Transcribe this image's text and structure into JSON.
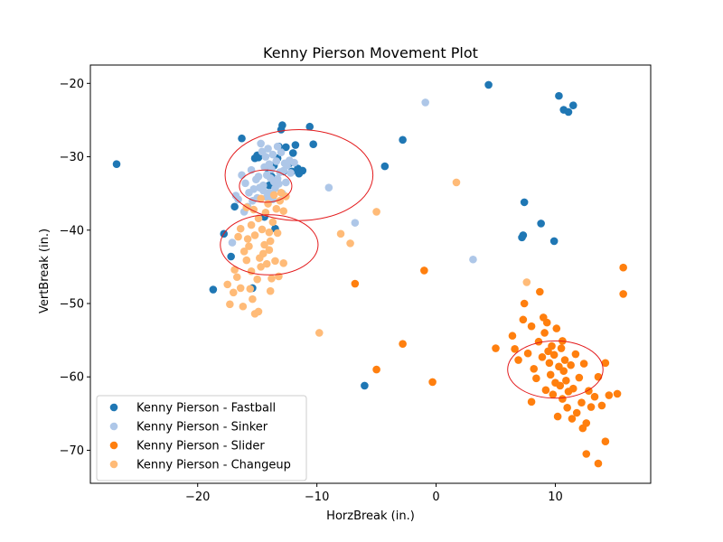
{
  "chart_data": {
    "type": "scatter",
    "title": "Kenny Pierson Movement Plot",
    "xlabel": "HorzBreak (in.)",
    "ylabel": "VertBreak (in.)",
    "xlim": [
      -29,
      18
    ],
    "ylim": [
      -74.5,
      -17.5
    ],
    "xticks": [
      -20,
      -10,
      0,
      10
    ],
    "yticks": [
      -20,
      -30,
      -40,
      -50,
      -60,
      -70
    ],
    "grid": false,
    "legend_position": "lower-left",
    "ellipse_color": "#e31a1c",
    "ellipses": [
      {
        "cx": -11.5,
        "cy": -32.5,
        "rx": 6.2,
        "ry": 6.2
      },
      {
        "cx": -14.3,
        "cy": -34.0,
        "rx": 2.2,
        "ry": 2.2
      },
      {
        "cx": -14.0,
        "cy": -42.0,
        "rx": 4.1,
        "ry": 4.1
      },
      {
        "cx": 10.0,
        "cy": -59.0,
        "rx": 4.0,
        "ry": 3.9
      }
    ],
    "series": [
      {
        "name": "Kenny Pierson - Fastball",
        "color": "#1f77b4",
        "points": [
          [
            -26.8,
            -31.0
          ],
          [
            -17.8,
            -40.5
          ],
          [
            -18.7,
            -48.1
          ],
          [
            -17.2,
            -43.6
          ],
          [
            -16.9,
            -36.8
          ],
          [
            -16.3,
            -27.5
          ],
          [
            -15.2,
            -30.2
          ],
          [
            -14.9,
            -30.1
          ],
          [
            -14.6,
            -29.5
          ],
          [
            -14.2,
            -31.5
          ],
          [
            -13.6,
            -31.2
          ],
          [
            -13.2,
            -28.6
          ],
          [
            -13.0,
            -26.3
          ],
          [
            -12.9,
            -25.7
          ],
          [
            -12.6,
            -28.7
          ],
          [
            -12.3,
            -30.9
          ],
          [
            -12.0,
            -29.5
          ],
          [
            -11.8,
            -28.4
          ],
          [
            -11.6,
            -31.6
          ],
          [
            -11.5,
            -32.3
          ],
          [
            -11.2,
            -31.9
          ],
          [
            -10.6,
            -25.9
          ],
          [
            -10.3,
            -28.3
          ],
          [
            -13.8,
            -32.7
          ],
          [
            -14.0,
            -33.9
          ],
          [
            -12.8,
            -32.0
          ],
          [
            -13.5,
            -39.8
          ],
          [
            -14.4,
            -38.2
          ],
          [
            -15.0,
            -29.8
          ],
          [
            -13.3,
            -30.2
          ],
          [
            -4.3,
            -31.3
          ],
          [
            -2.8,
            -27.7
          ],
          [
            4.4,
            -20.2
          ],
          [
            10.3,
            -21.7
          ],
          [
            10.7,
            -23.6
          ],
          [
            11.1,
            -23.9
          ],
          [
            11.5,
            -23.0
          ],
          [
            7.4,
            -36.2
          ],
          [
            8.8,
            -39.1
          ],
          [
            7.3,
            -40.7
          ],
          [
            7.2,
            -41.0
          ],
          [
            9.9,
            -41.5
          ],
          [
            -6.0,
            -61.2
          ],
          [
            -15.4,
            -47.9
          ],
          [
            -12.1,
            -32.0
          ]
        ]
      },
      {
        "name": "Kenny Pierson - Sinker",
        "color": "#aec7e8",
        "points": [
          [
            -16.3,
            -32.5
          ],
          [
            -16.0,
            -33.6
          ],
          [
            -15.7,
            -34.9
          ],
          [
            -16.8,
            -35.3
          ],
          [
            -15.8,
            -36.8
          ],
          [
            -15.4,
            -36.0
          ],
          [
            -15.0,
            -35.6
          ],
          [
            -14.8,
            -34.2
          ],
          [
            -14.5,
            -33.9
          ],
          [
            -14.2,
            -32.5
          ],
          [
            -13.9,
            -32.9
          ],
          [
            -13.6,
            -33.4
          ],
          [
            -13.3,
            -33.0
          ],
          [
            -13.1,
            -32.1
          ],
          [
            -12.8,
            -31.9
          ],
          [
            -12.5,
            -31.2
          ],
          [
            -12.3,
            -30.5
          ],
          [
            -14.0,
            -31.0
          ],
          [
            -14.3,
            -30.0
          ],
          [
            -14.6,
            -29.3
          ],
          [
            -14.7,
            -28.2
          ],
          [
            -14.1,
            -28.9
          ],
          [
            -13.7,
            -29.7
          ],
          [
            -13.4,
            -30.6
          ],
          [
            -13.0,
            -29.4
          ],
          [
            -12.7,
            -30.9
          ],
          [
            -12.2,
            -32.2
          ],
          [
            -11.9,
            -30.8
          ],
          [
            -15.1,
            -33.1
          ],
          [
            -14.9,
            -32.7
          ],
          [
            -14.5,
            -34.6
          ],
          [
            -14.0,
            -34.9
          ],
          [
            -13.5,
            -34.3
          ],
          [
            -13.2,
            -33.7
          ],
          [
            -12.9,
            -35.0
          ],
          [
            -15.5,
            -31.8
          ],
          [
            -14.4,
            -31.4
          ],
          [
            -13.8,
            -31.7
          ],
          [
            -13.3,
            -28.6
          ],
          [
            -15.3,
            -34.4
          ],
          [
            -14.2,
            -35.5
          ],
          [
            -13.7,
            -35.8
          ],
          [
            -16.1,
            -37.5
          ],
          [
            -17.1,
            -41.7
          ],
          [
            -9.0,
            -34.2
          ],
          [
            -6.8,
            -39.0
          ],
          [
            -0.9,
            -22.6
          ],
          [
            3.1,
            -44.0
          ],
          [
            -16.6,
            -35.8
          ],
          [
            -12.6,
            -33.5
          ]
        ]
      },
      {
        "name": "Kenny Pierson - Slider",
        "color": "#ff7f0e",
        "points": [
          [
            -6.8,
            -47.3
          ],
          [
            -1.0,
            -45.5
          ],
          [
            -2.8,
            -55.5
          ],
          [
            -5.0,
            -59.0
          ],
          [
            -0.3,
            -60.7
          ],
          [
            5.0,
            -56.1
          ],
          [
            6.4,
            -54.4
          ],
          [
            6.6,
            -56.2
          ],
          [
            6.9,
            -57.7
          ],
          [
            7.3,
            -52.2
          ],
          [
            7.4,
            -50.0
          ],
          [
            7.7,
            -56.8
          ],
          [
            8.0,
            -53.1
          ],
          [
            8.2,
            -58.9
          ],
          [
            8.4,
            -60.2
          ],
          [
            8.6,
            -55.2
          ],
          [
            8.7,
            -48.4
          ],
          [
            8.9,
            -57.3
          ],
          [
            9.1,
            -54.0
          ],
          [
            9.2,
            -61.8
          ],
          [
            9.3,
            -52.6
          ],
          [
            9.4,
            -56.5
          ],
          [
            9.5,
            -58.1
          ],
          [
            9.6,
            -59.7
          ],
          [
            9.7,
            -55.8
          ],
          [
            9.8,
            -62.4
          ],
          [
            9.9,
            -57.0
          ],
          [
            10.0,
            -60.8
          ],
          [
            10.1,
            -53.4
          ],
          [
            10.2,
            -65.4
          ],
          [
            10.3,
            -58.6
          ],
          [
            10.4,
            -61.2
          ],
          [
            10.5,
            -56.1
          ],
          [
            10.6,
            -63.0
          ],
          [
            10.7,
            -59.2
          ],
          [
            10.8,
            -57.7
          ],
          [
            10.9,
            -60.5
          ],
          [
            11.0,
            -64.2
          ],
          [
            11.1,
            -62.0
          ],
          [
            11.3,
            -58.4
          ],
          [
            11.5,
            -61.6
          ],
          [
            11.7,
            -56.9
          ],
          [
            11.8,
            -64.9
          ],
          [
            12.0,
            -60.1
          ],
          [
            12.2,
            -63.5
          ],
          [
            12.4,
            -58.2
          ],
          [
            12.6,
            -66.3
          ],
          [
            12.8,
            -61.9
          ],
          [
            13.0,
            -64.1
          ],
          [
            13.3,
            -62.7
          ],
          [
            13.6,
            -60.0
          ],
          [
            13.9,
            -63.9
          ],
          [
            14.2,
            -58.1
          ],
          [
            14.5,
            -62.5
          ],
          [
            15.2,
            -62.3
          ],
          [
            14.2,
            -68.8
          ],
          [
            12.6,
            -70.5
          ],
          [
            13.6,
            -71.8
          ],
          [
            15.7,
            -45.1
          ],
          [
            15.7,
            -48.7
          ],
          [
            8.0,
            -63.4
          ],
          [
            9.0,
            -51.9
          ],
          [
            10.6,
            -55.1
          ],
          [
            11.4,
            -65.7
          ],
          [
            12.3,
            -67.0
          ]
        ]
      },
      {
        "name": "Kenny Pierson - Changeup",
        "color": "#ffbb78",
        "points": [
          [
            -17.3,
            -50.1
          ],
          [
            -17.0,
            -48.5
          ],
          [
            -16.7,
            -46.4
          ],
          [
            -16.4,
            -47.9
          ],
          [
            -16.2,
            -50.4
          ],
          [
            -15.9,
            -44.1
          ],
          [
            -15.6,
            -48.0
          ],
          [
            -15.4,
            -49.4
          ],
          [
            -15.2,
            -51.4
          ],
          [
            -14.9,
            -51.1
          ],
          [
            -15.0,
            -46.7
          ],
          [
            -14.7,
            -45.0
          ],
          [
            -14.5,
            -43.2
          ],
          [
            -14.2,
            -44.6
          ],
          [
            -14.0,
            -42.7
          ],
          [
            -13.8,
            -46.6
          ],
          [
            -13.5,
            -44.2
          ],
          [
            -13.2,
            -46.3
          ],
          [
            -12.8,
            -44.5
          ],
          [
            -16.1,
            -42.9
          ],
          [
            -15.8,
            -41.2
          ],
          [
            -15.5,
            -39.3
          ],
          [
            -15.2,
            -40.7
          ],
          [
            -14.9,
            -38.4
          ],
          [
            -14.6,
            -39.9
          ],
          [
            -14.3,
            -37.6
          ],
          [
            -14.0,
            -40.3
          ],
          [
            -13.7,
            -38.9
          ],
          [
            -13.4,
            -37.1
          ],
          [
            -13.1,
            -36.0
          ],
          [
            -12.8,
            -37.4
          ],
          [
            -12.6,
            -35.4
          ],
          [
            -13.0,
            -34.9
          ],
          [
            -13.6,
            -35.2
          ],
          [
            -14.1,
            -36.4
          ],
          [
            -14.7,
            -35.7
          ],
          [
            -15.3,
            -37.2
          ],
          [
            -15.9,
            -36.9
          ],
          [
            -16.4,
            -39.8
          ],
          [
            -15.7,
            -42.2
          ],
          [
            -14.4,
            -42.0
          ],
          [
            -13.9,
            -41.5
          ],
          [
            -13.3,
            -40.4
          ],
          [
            -16.9,
            -45.4
          ],
          [
            -17.5,
            -47.4
          ],
          [
            -9.8,
            -54.0
          ],
          [
            -8.0,
            -40.5
          ],
          [
            -7.2,
            -41.8
          ],
          [
            -5.0,
            -37.5
          ],
          [
            1.7,
            -33.5
          ],
          [
            7.6,
            -47.1
          ],
          [
            -14.8,
            -43.8
          ],
          [
            -15.5,
            -45.6
          ],
          [
            -13.9,
            -48.3
          ],
          [
            -16.6,
            -40.9
          ]
        ]
      }
    ]
  }
}
